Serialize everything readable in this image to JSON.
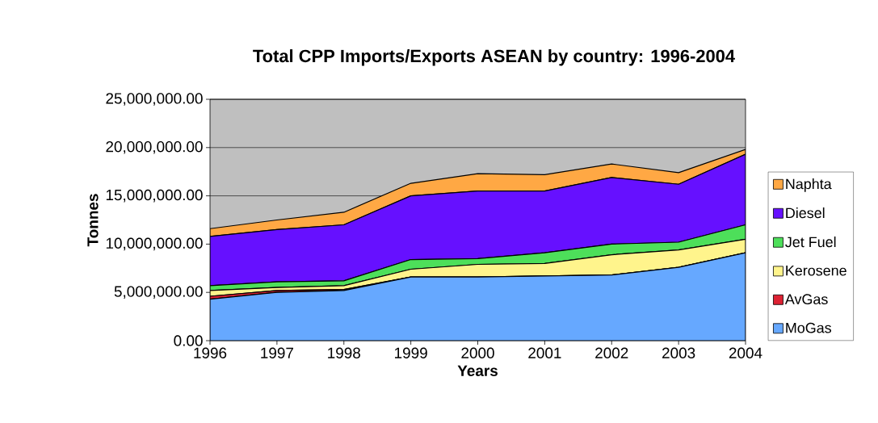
{
  "chart_data": {
    "type": "area",
    "title": "Total CPP Imports/Exports ASEAN by country: 1996-2004",
    "xlabel": "Years",
    "ylabel": "Tonnes",
    "stacked": true,
    "x": [
      1996,
      1997,
      1998,
      1999,
      2000,
      2001,
      2002,
      2003,
      2004
    ],
    "series": [
      {
        "name": "MoGas",
        "color": "#66a8ff",
        "values": [
          4300000,
          5000000,
          5200000,
          6600000,
          6600000,
          6700000,
          6800000,
          7600000,
          9100000
        ]
      },
      {
        "name": "AvGas",
        "color": "#dd2233",
        "values": [
          300000,
          200000,
          100000,
          0,
          0,
          0,
          0,
          0,
          0
        ]
      },
      {
        "name": "Kerosene",
        "color": "#fff48c",
        "values": [
          600000,
          300000,
          400000,
          800000,
          1300000,
          1300000,
          2100000,
          1800000,
          1400000
        ]
      },
      {
        "name": "Jet Fuel",
        "color": "#4ddf5a",
        "values": [
          500000,
          600000,
          500000,
          1000000,
          600000,
          1100000,
          1100000,
          800000,
          1500000
        ]
      },
      {
        "name": "Diesel",
        "color": "#6610ff",
        "values": [
          5100000,
          5400000,
          5800000,
          6600000,
          7000000,
          6400000,
          6900000,
          6000000,
          7300000
        ]
      },
      {
        "name": "Naphta",
        "color": "#ffa844",
        "values": [
          800000,
          1000000,
          1300000,
          1300000,
          1800000,
          1700000,
          1400000,
          1200000,
          500000
        ]
      }
    ],
    "xlim": [
      1996,
      2004
    ],
    "xticks": [
      1996,
      1997,
      1998,
      1999,
      2000,
      2001,
      2002,
      2003,
      2004
    ],
    "ylim": [
      0,
      25000000
    ],
    "yticks": [
      {
        "value": 0,
        "label": "0.00"
      },
      {
        "value": 5000000,
        "label": "5,000,000.00"
      },
      {
        "value": 10000000,
        "label": "10,000,000.00"
      },
      {
        "value": 15000000,
        "label": "15,000,000.00"
      },
      {
        "value": 20000000,
        "label": "20,000,000.00"
      },
      {
        "value": 25000000,
        "label": "25,000,000.00"
      }
    ],
    "grid": "y",
    "legend": "right"
  }
}
